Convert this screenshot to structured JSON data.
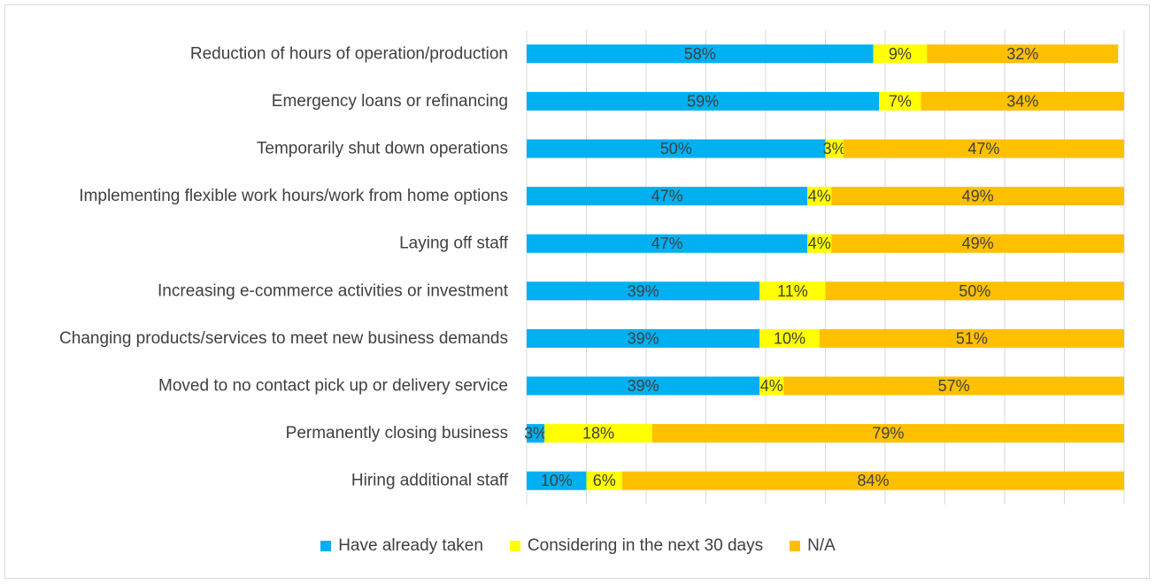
{
  "chart_data": {
    "type": "bar",
    "orientation": "horizontal",
    "stacked": true,
    "categories": [
      "Reduction of hours of operation/production",
      "Emergency loans or refinancing",
      "Temporarily shut down operations",
      "Implementing flexible work hours/work from home options",
      "Laying off staff",
      "Increasing e-commerce activities or investment",
      "Changing products/services to meet new business demands",
      "Moved to no contact pick up or delivery service",
      "Permanently closing business",
      "Hiring additional staff"
    ],
    "series": [
      {
        "name": "Have already taken",
        "color": "#00b0f0",
        "values": [
          58,
          59,
          50,
          47,
          47,
          39,
          39,
          39,
          3,
          10
        ]
      },
      {
        "name": "Considering in the next 30 days",
        "color": "#ffff00",
        "values": [
          9,
          7,
          3,
          4,
          4,
          11,
          10,
          4,
          18,
          6
        ]
      },
      {
        "name": "N/A",
        "color": "#ffc000",
        "values": [
          32,
          34,
          47,
          49,
          49,
          50,
          51,
          57,
          79,
          84
        ]
      }
    ],
    "xlim": [
      0,
      100
    ],
    "grid": true,
    "legend_position": "bottom",
    "value_format": "percent"
  }
}
